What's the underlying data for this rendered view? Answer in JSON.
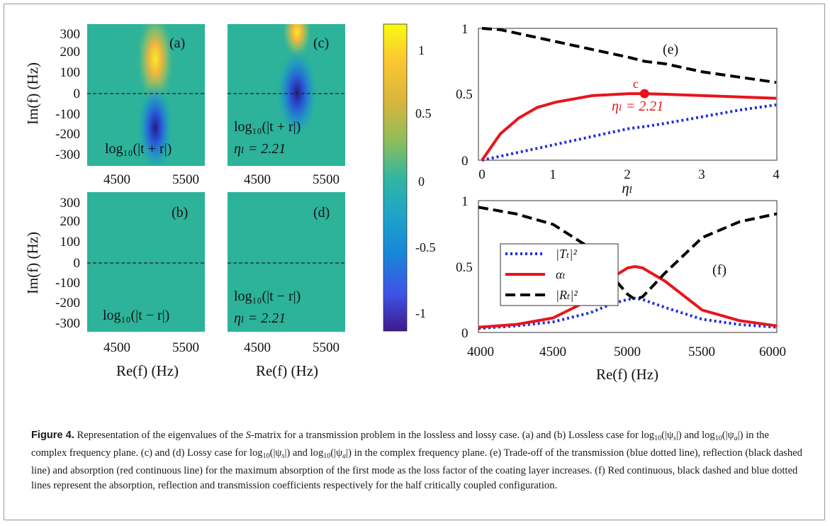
{
  "figure": {
    "heatmap_panels": [
      {
        "panel_label": "(a)",
        "formula": "log₁₀(|t + r|)",
        "eta_text": "",
        "x_ticks": [
          "4500",
          "5500"
        ],
        "y_ticks": [
          "300",
          "200",
          "100",
          "0",
          "-100",
          "-200",
          "-300"
        ],
        "ylabel": "Im(f)  (Hz)",
        "xlabel": "",
        "peak": {
          "re": 5050,
          "im": 170
        },
        "dip": {
          "re": 5050,
          "im": -160
        }
      },
      {
        "panel_label": "(c)",
        "formula": "log₁₀(|t + r|)",
        "eta_text": "ηₗ = 2.21",
        "x_ticks": [
          "4500",
          "5500"
        ],
        "y_ticks": [],
        "ylabel": "",
        "xlabel": "",
        "peak": {
          "re": 5050,
          "im": 300
        },
        "dip": {
          "re": 5050,
          "im": 0
        }
      },
      {
        "panel_label": "(b)",
        "formula": "log₁₀(|t − r|)",
        "eta_text": "",
        "x_ticks": [
          "4500",
          "5500"
        ],
        "y_ticks": [
          "300",
          "200",
          "100",
          "0",
          "-100",
          "-200",
          "-300"
        ],
        "ylabel": "Im(f)  (Hz)",
        "xlabel": "Re(f)  (Hz)"
      },
      {
        "panel_label": "(d)",
        "formula": "log₁₀(|t − r|)",
        "eta_text": "ηₗ = 2.21",
        "x_ticks": [
          "4500",
          "5500"
        ],
        "y_ticks": [],
        "ylabel": "",
        "xlabel": "Re(f)  (Hz)"
      }
    ],
    "colorbar": {
      "ticks": [
        "1",
        "0.5",
        "0",
        "-0.5",
        "-1"
      ],
      "range": [
        -1.2,
        1.2
      ]
    },
    "panel_e": {
      "label": "(e)",
      "xlabel": "ηₗ",
      "x_ticks": [
        "0",
        "1",
        "2",
        "3",
        "4"
      ],
      "y_ticks": [
        "1",
        "0.5",
        "0"
      ],
      "marker_letter": "c",
      "marker_text": "ηₗ = 2.21"
    },
    "panel_f": {
      "label": "(f)",
      "xlabel": "Re(f)  (Hz)",
      "x_ticks": [
        "4000",
        "4500",
        "5000",
        "5500",
        "6000"
      ],
      "y_ticks": [
        "1",
        "0.5",
        "0"
      ],
      "legend": [
        "|Tₜ|²",
        "αₜ",
        "|Rₜ|²"
      ]
    }
  },
  "caption": {
    "label": "Figure 4.",
    "parts": [
      " Representation of the eigenvalues of the ",
      "S",
      "-matrix for a transmission problem in the lossless and lossy case. (a) and (b) Lossless case for log",
      "10",
      "(|ψ",
      "s",
      "|) and log",
      "10",
      "(|ψ",
      "a",
      "|) in the complex frequency plane. (c) and (d) Lossy case for log",
      "10",
      "(|ψ",
      "s",
      "|) and log",
      "10",
      "(|ψ",
      "a",
      "|) in the complex frequency plane. (e) Trade-off of the transmission (blue dotted line), reflection (black dashed line) and absorption (red continuous line) for the maximum absorption of the first mode as the loss factor of the coating layer increases. (f) Red continuous, black dashed and blue dotted lines represent the absorption, reflection and transmission coefficients respectively for the half critically coupled configuration."
    ]
  },
  "chart_data": [
    {
      "type": "heatmap",
      "panel": "(a)",
      "title": "log10(|t + r|)",
      "x_range": [
        4000,
        6000
      ],
      "y_range": [
        -350,
        350
      ],
      "xlabel": "Re(f) (Hz)",
      "ylabel": "Im(f) (Hz)",
      "features": [
        {
          "kind": "max",
          "re": 5050,
          "im": 170,
          "value": 1.15
        },
        {
          "kind": "min",
          "re": 5050,
          "im": -160,
          "value": -1.15
        }
      ]
    },
    {
      "type": "heatmap",
      "panel": "(c)",
      "title": "log10(|t + r|), ηl = 2.21",
      "x_range": [
        4000,
        6000
      ],
      "y_range": [
        -350,
        350
      ],
      "features": [
        {
          "kind": "max",
          "re": 5050,
          "im": 300,
          "value": 1.15
        },
        {
          "kind": "min",
          "re": 5050,
          "im": 0,
          "value": -1.15
        }
      ]
    },
    {
      "type": "heatmap",
      "panel": "(b)",
      "title": "log10(|t - r|)",
      "x_range": [
        4000,
        6000
      ],
      "y_range": [
        -350,
        350
      ],
      "uniform_value": 0
    },
    {
      "type": "heatmap",
      "panel": "(d)",
      "title": "log10(|t - r|), ηl = 2.21",
      "x_range": [
        4000,
        6000
      ],
      "y_range": [
        -350,
        350
      ],
      "uniform_value": 0
    },
    {
      "type": "line",
      "panel": "(e)",
      "xlabel": "ηl",
      "xlim": [
        0,
        4
      ],
      "ylim": [
        0,
        1
      ],
      "x": [
        0,
        0.25,
        0.5,
        0.75,
        1,
        1.5,
        2,
        2.21,
        2.5,
        3,
        3.5,
        4
      ],
      "series": [
        {
          "style": "dotted",
          "color": "#1f2fd6",
          "values": [
            0,
            0.03,
            0.06,
            0.09,
            0.12,
            0.18,
            0.24,
            0.255,
            0.28,
            0.33,
            0.38,
            0.42
          ]
        },
        {
          "style": "solid",
          "color": "#e8141c",
          "values": [
            0,
            0.2,
            0.32,
            0.4,
            0.44,
            0.49,
            0.505,
            0.505,
            0.5,
            0.49,
            0.48,
            0.47
          ]
        },
        {
          "style": "dashed",
          "color": "#000000",
          "values": [
            1,
            0.99,
            0.96,
            0.93,
            0.9,
            0.84,
            0.78,
            0.75,
            0.73,
            0.67,
            0.63,
            0.59
          ]
        }
      ],
      "marker": {
        "x": 2.21,
        "y": 0.505,
        "color": "#e8141c"
      }
    },
    {
      "type": "line",
      "panel": "(f)",
      "xlabel": "Re(f) (Hz)",
      "xlim": [
        4000,
        6000
      ],
      "ylim": [
        0,
        1
      ],
      "x": [
        4000,
        4250,
        4500,
        4750,
        4900,
        5000,
        5050,
        5100,
        5250,
        5500,
        5750,
        6000
      ],
      "series": [
        {
          "name": "|Tt|²",
          "style": "dotted",
          "color": "#1f2fd6",
          "values": [
            0.03,
            0.05,
            0.08,
            0.15,
            0.22,
            0.25,
            0.26,
            0.25,
            0.19,
            0.1,
            0.06,
            0.04
          ]
        },
        {
          "name": "αt",
          "style": "solid",
          "color": "#e8141c",
          "values": [
            0.04,
            0.06,
            0.11,
            0.25,
            0.42,
            0.49,
            0.5,
            0.49,
            0.39,
            0.17,
            0.09,
            0.05
          ]
        },
        {
          "name": "|Rt|²",
          "style": "dashed",
          "color": "#000000",
          "values": [
            0.95,
            0.9,
            0.82,
            0.64,
            0.42,
            0.29,
            0.25,
            0.27,
            0.45,
            0.72,
            0.84,
            0.9
          ]
        }
      ],
      "legend_position": "top-left"
    }
  ]
}
